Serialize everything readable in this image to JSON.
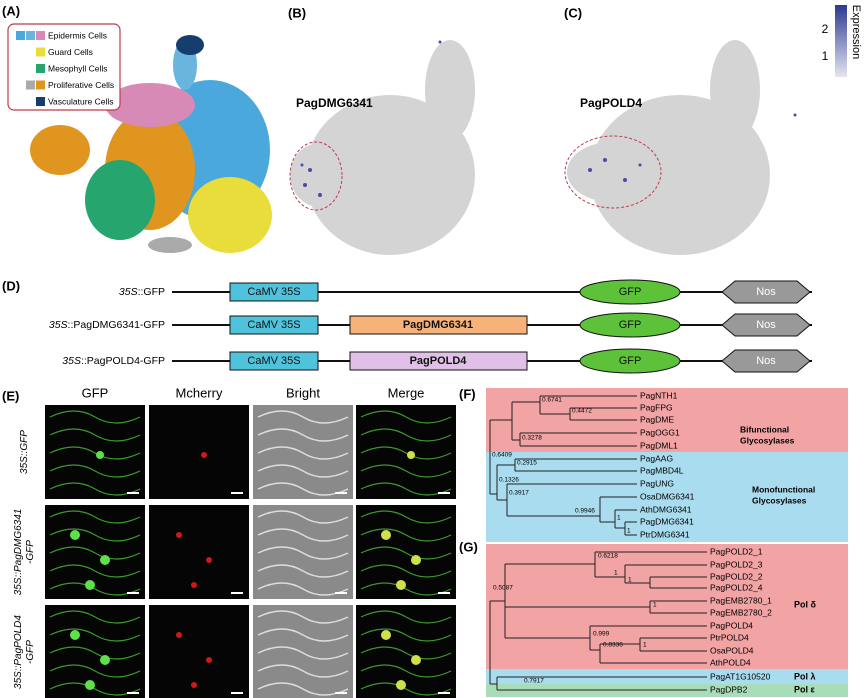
{
  "panel_labels": [
    "(A)",
    "(B)",
    "(C)",
    "(D)",
    "(E)",
    "(F)",
    "(G)"
  ],
  "cell_types": [
    "Epidermis Cells",
    "Guard Cells",
    "Mesophyll Cells",
    "Proliferative Cells",
    "Vasculature Cells"
  ],
  "genes": [
    "PagDMG6341",
    "PagPOLD4"
  ],
  "colorbar": {
    "title": "Expression",
    "ticks": [
      "2",
      "1"
    ]
  },
  "constructs": [
    {
      "promoter": "35S",
      "name": "::GFP",
      "parts": [
        "CaMV 35S",
        "GFP",
        "Nos"
      ]
    },
    {
      "promoter": "35S",
      "name": "::PagDMG6341-GFP",
      "parts": [
        "CaMV 35S",
        "PagDMG6341",
        "GFP",
        "Nos"
      ]
    },
    {
      "promoter": "35S",
      "name": "::PagPOLD4-GFP",
      "parts": [
        "CaMV 35S",
        "PagPOLD4",
        "GFP",
        "Nos"
      ]
    }
  ],
  "microscopy": {
    "columns": [
      "GFP",
      "Mcherry",
      "Bright",
      "Merge"
    ],
    "rows": [
      {
        "promoter": "35S",
        "lines": [
          "::GFP"
        ]
      },
      {
        "promoter": "35S",
        "lines": [
          "::PagDMG6341",
          "-GFP"
        ]
      },
      {
        "promoter": "35S",
        "lines": [
          "::PagPOLD4",
          "-GFP"
        ]
      }
    ]
  },
  "tree_f": {
    "leaves": [
      "PagNTH1",
      "PagFPG",
      "PagDME",
      "PagOGG1",
      "PagDML1",
      "PagAAG",
      "PagMBD4L",
      "PagUNG",
      "OsaDMG6341",
      "AthDMG6341",
      "PagDMG6341",
      "PtrDMG6341"
    ],
    "supports": [
      "0.6741",
      "0.4472",
      "0.3278",
      "0.6409",
      "0.2915",
      "0.1326",
      "0.3917",
      "0.9946",
      "1",
      "1"
    ],
    "groups": [
      [
        "Bifunctional",
        "Glycosylases"
      ],
      [
        "Monofunctional",
        "Glycosylases"
      ]
    ]
  },
  "tree_g": {
    "leaves": [
      "PagPOLD2_1",
      "PagPOLD2_3",
      "PagPOLD2_2",
      "PagPOLD2_4",
      "PagEMB2780_1",
      "PagEMB2780_2",
      "PagPOLD4",
      "PtrPOLD4",
      "OsaPOLD4",
      "AthPOLD4",
      "PagAT1G10520",
      "PagDPB2"
    ],
    "supports": [
      "0.6218",
      "1",
      "1",
      "0.5087",
      "1",
      "0.999",
      "0.8336",
      "1",
      "0.7917"
    ],
    "groups": [
      "Pol δ",
      "Pol λ",
      "Pol ε"
    ]
  }
}
